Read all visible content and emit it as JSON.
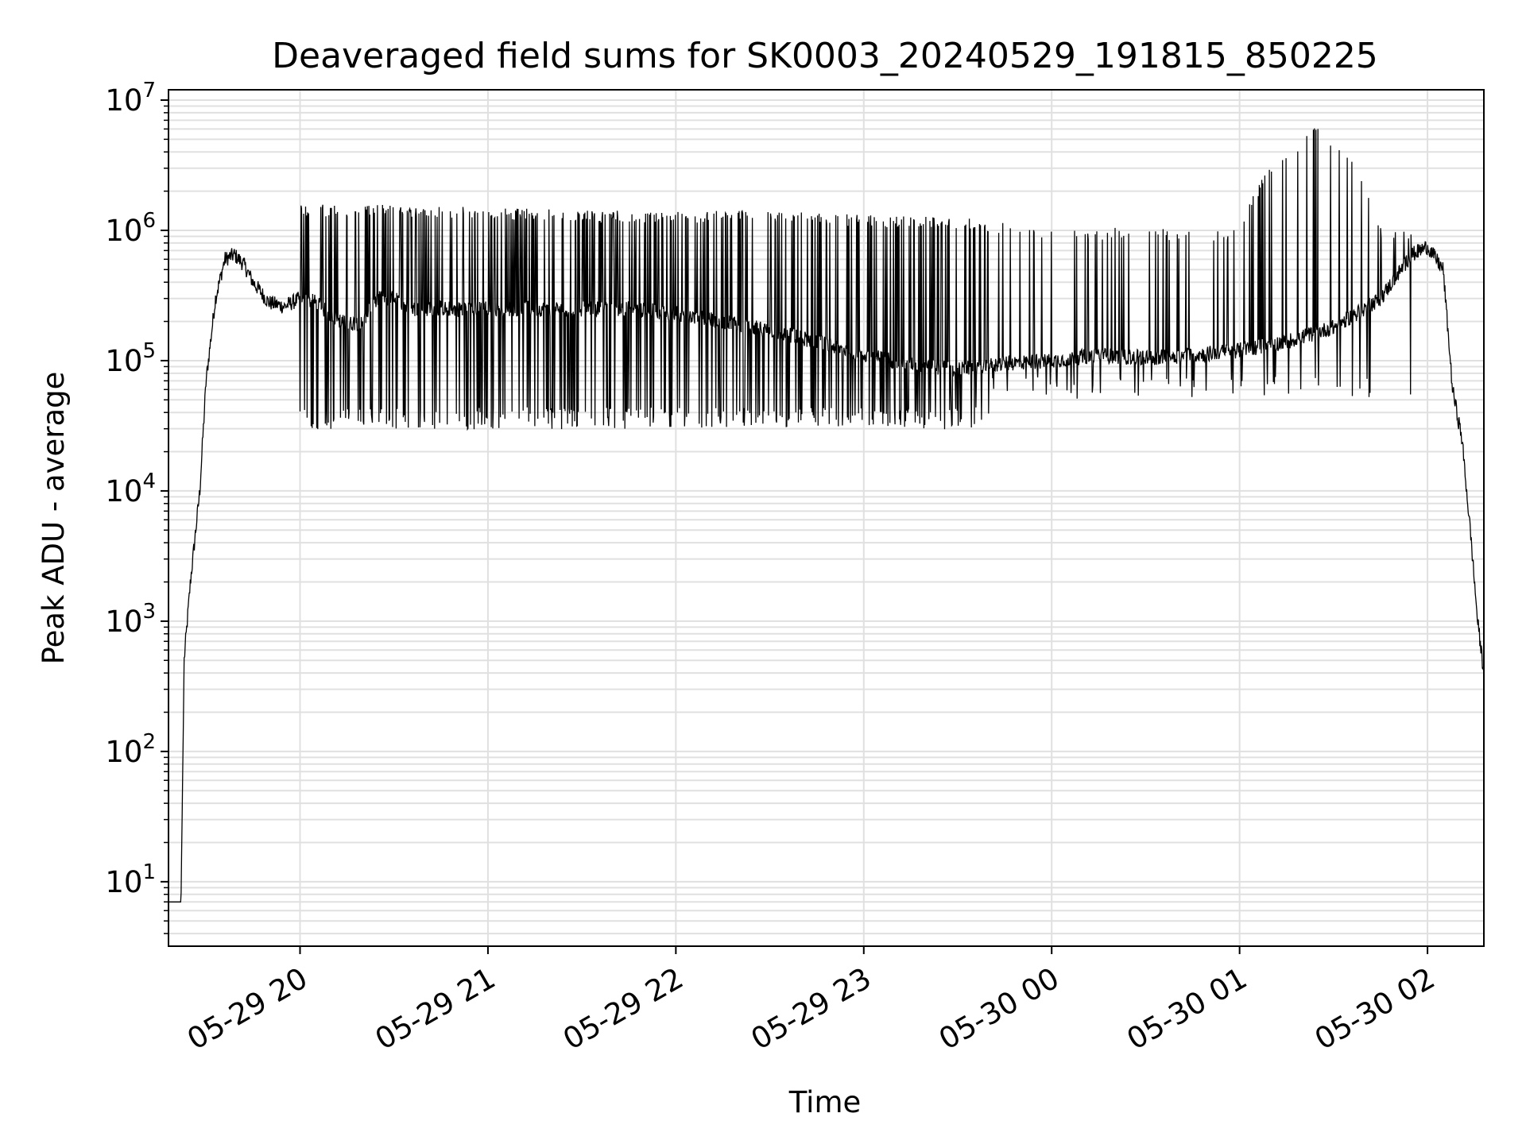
{
  "chart_data": {
    "type": "line",
    "title": "Deaveraged field sums for SK0003_20240529_191815_850225",
    "xlabel": "Time",
    "ylabel": "Peak ADU - average",
    "yscale": "log",
    "ylim": [
      3.2,
      12000000
    ],
    "xlim": [
      "05-29 19:18",
      "05-30 02:18"
    ],
    "grid": true,
    "grid_color": "#e0e0e0",
    "line_color": "#000000",
    "x_ticks": [
      "05-29 20",
      "05-29 21",
      "05-29 22",
      "05-29 23",
      "05-30 00",
      "05-30 01",
      "05-30 02"
    ],
    "y_ticks": [
      {
        "base": "10",
        "exp": "1",
        "value": 10
      },
      {
        "base": "10",
        "exp": "2",
        "value": 100
      },
      {
        "base": "10",
        "exp": "3",
        "value": 1000
      },
      {
        "base": "10",
        "exp": "4",
        "value": 10000
      },
      {
        "base": "10",
        "exp": "5",
        "value": 100000
      },
      {
        "base": "10",
        "exp": "6",
        "value": 1000000
      },
      {
        "base": "10",
        "exp": "7",
        "value": 10000000
      }
    ],
    "series": [
      {
        "x": [
          "05-29 19:18",
          "05-29 19:20",
          "05-29 19:21",
          "05-29 19:22",
          "05-29 19:23",
          "05-29 19:25",
          "05-29 19:28",
          "05-29 19:30",
          "05-29 19:33",
          "05-29 19:36",
          "05-29 19:39",
          "05-29 19:42",
          "05-29 19:45",
          "05-29 19:50",
          "05-29 19:55",
          "05-29 20:00",
          "05-29 20:05",
          "05-29 20:10",
          "05-29 20:15",
          "05-29 20:20",
          "05-29 20:25",
          "05-29 20:30",
          "05-29 20:35",
          "05-29 20:45",
          "05-29 21:00",
          "05-29 21:15",
          "05-29 21:30",
          "05-29 21:45",
          "05-29 22:00",
          "05-29 22:15",
          "05-29 22:30",
          "05-29 22:45",
          "05-29 23:00",
          "05-29 23:15",
          "05-29 23:30",
          "05-29 23:45",
          "05-30 00:00",
          "05-30 00:15",
          "05-30 00:30",
          "05-30 00:45",
          "05-30 01:00",
          "05-30 01:15",
          "05-30 01:30",
          "05-30 01:45",
          "05-30 01:55",
          "05-30 02:00",
          "05-30 02:05",
          "05-30 02:08",
          "05-30 02:11",
          "05-30 02:14",
          "05-30 02:16",
          "05-30 02:18"
        ],
        "y": [
          7,
          7,
          7,
          7,
          500,
          2000,
          10000,
          70000,
          300000,
          600000,
          650000,
          550000,
          400000,
          280000,
          260000,
          300000,
          280000,
          220000,
          190000,
          200000,
          300000,
          300000,
          250000,
          250000,
          250000,
          250000,
          250000,
          250000,
          230000,
          200000,
          170000,
          140000,
          110000,
          95000,
          85000,
          95000,
          100000,
          110000,
          105000,
          110000,
          120000,
          140000,
          180000,
          300000,
          650000,
          750000,
          500000,
          60000,
          25000,
          4000,
          1000,
          400
        ]
      },
      {
        "name": "",
        "x": [
          "05-29 20:25",
          "05-29 20:55",
          "05-29 21:30",
          "05-29 22:00",
          "05-29 22:30",
          "05-29 23:00",
          "05-29 23:30",
          "05-30 00:00",
          "05-30 00:30",
          "05-30 01:00",
          "05-30 01:25",
          "05-30 01:45"
        ],
        "y": [
          1500000,
          1450000,
          1350000,
          1350000,
          1350000,
          1250000,
          1200000,
          1000000,
          1000000,
          950000,
          6000000,
          1000000
        ]
      }
    ]
  }
}
